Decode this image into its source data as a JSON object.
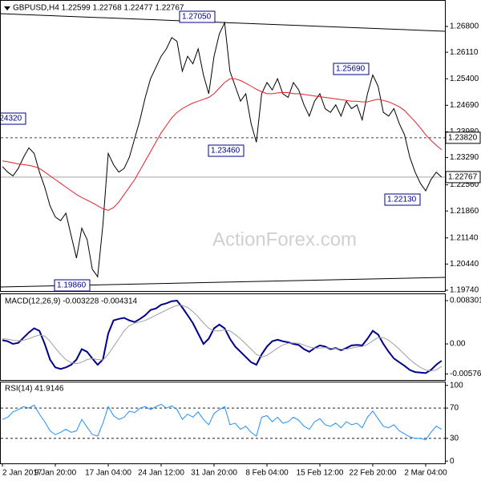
{
  "chart_data": [
    {
      "type": "line",
      "title": "GBPUSD,H4  1.22599 1.22768 1.22477 1.22767",
      "series": [
        {
          "color": "#000000",
          "values": [
            1.2305,
            1.229,
            1.228,
            1.23,
            1.233,
            1.2355,
            1.234,
            1.229,
            1.225,
            1.22,
            1.217,
            1.216,
            1.218,
            1.212,
            1.206,
            1.214,
            1.211,
            1.203,
            1.201,
            1.215,
            1.234,
            1.231,
            1.229,
            1.23,
            1.233,
            1.238,
            1.243,
            1.249,
            1.254,
            1.257,
            1.26,
            1.262,
            1.265,
            1.264,
            1.256,
            1.26,
            1.258,
            1.262,
            1.255,
            1.25,
            1.26,
            1.266,
            1.269,
            1.256,
            1.252,
            1.248,
            1.25,
            1.242,
            1.237,
            1.25,
            1.253,
            1.251,
            1.254,
            1.25,
            1.249,
            1.253,
            1.251,
            1.247,
            1.244,
            1.248,
            1.25,
            1.246,
            1.245,
            1.247,
            1.244,
            1.248,
            1.246,
            1.247,
            1.243,
            1.25,
            1.255,
            1.252,
            1.245,
            1.244,
            1.246,
            1.242,
            1.239,
            1.233,
            1.229,
            1.226,
            1.224,
            1.227,
            1.229,
            1.22767
          ]
        },
        {
          "color": "#e8202a",
          "values": [
            1.232,
            1.2318,
            1.2315,
            1.2312,
            1.231,
            1.2308,
            1.2305,
            1.23,
            1.229,
            1.228,
            1.227,
            1.226,
            1.225,
            1.224,
            1.223,
            1.2222,
            1.2215,
            1.2208,
            1.22,
            1.2192,
            1.2188,
            1.2195,
            1.221,
            1.223,
            1.225,
            1.227,
            1.2295,
            1.232,
            1.2345,
            1.237,
            1.2395,
            1.2415,
            1.2435,
            1.245,
            1.246,
            1.2468,
            1.2475,
            1.248,
            1.2485,
            1.249,
            1.25,
            1.2515,
            1.253,
            1.254,
            1.254,
            1.2535,
            1.2528,
            1.252,
            1.2512,
            1.2505,
            1.25,
            1.25,
            1.2502,
            1.2503,
            1.2503,
            1.25,
            1.25,
            1.2498,
            1.2496,
            1.2494,
            1.2492,
            1.249,
            1.2488,
            1.2486,
            1.2484,
            1.2482,
            1.248,
            1.248,
            1.2478,
            1.2478,
            1.2482,
            1.2485,
            1.2482,
            1.2478,
            1.2472,
            1.2465,
            1.2455,
            1.244,
            1.2425,
            1.2408,
            1.239,
            1.2375,
            1.2362,
            1.235
          ]
        }
      ],
      "ylim": [
        1.1974,
        1.274
      ],
      "yticks": [
        {
          "value": 1.268,
          "label": "1.26800"
        },
        {
          "value": 1.2611,
          "label": "1.26110"
        },
        {
          "value": 1.254,
          "label": "1.25400"
        },
        {
          "value": 1.2469,
          "label": "1.24690"
        },
        {
          "value": 1.2398,
          "label": "1.23980"
        },
        {
          "value": 1.2329,
          "label": "1.23290"
        },
        {
          "value": 1.2256,
          "label": "1.22560"
        },
        {
          "value": 1.2186,
          "label": "1.21860"
        },
        {
          "value": 1.2114,
          "label": "1.21140"
        },
        {
          "value": 1.2044,
          "label": "1.20440"
        },
        {
          "value": 1.1974,
          "label": "1.19740"
        }
      ],
      "levels": [
        {
          "value": 1.2382,
          "label": "1.23820"
        },
        {
          "value": 1.22767,
          "label": "1.22767"
        }
      ],
      "annotations": [
        "1.27050",
        "1.23460",
        "1.25690",
        "1.22130",
        "1.19860",
        "1.24320"
      ],
      "watermark": "ActionForex.com"
    },
    {
      "type": "line",
      "title": "MACD(12,26,9) -0.003228 -0.004314",
      "series": [
        {
          "color": "#00008b",
          "values": [
            0.0007,
            0.0005,
            0.0,
            0.0002,
            0.0012,
            0.0022,
            0.003,
            0.0025,
            0.0,
            -0.003,
            -0.0045,
            -0.0048,
            -0.0045,
            -0.004,
            -0.003,
            -0.001,
            -0.0015,
            -0.0028,
            -0.004,
            -0.003,
            0.002,
            0.0045,
            0.0048,
            0.005,
            0.0045,
            0.0042,
            0.0048,
            0.0055,
            0.0065,
            0.0068,
            0.0075,
            0.0078,
            0.0082,
            0.0083,
            0.007,
            0.0055,
            0.004,
            0.002,
            0.0,
            0.001,
            0.003,
            0.0037,
            0.003,
            0.001,
            -0.0005,
            -0.0015,
            -0.0025,
            -0.0035,
            -0.004,
            -0.002,
            -0.0005,
            0.0005,
            0.0008,
            0.0005,
            0.0003,
            0.0,
            -0.0002,
            -0.001,
            -0.0015,
            -0.0008,
            -0.0003,
            -0.0005,
            -0.001,
            -0.0008,
            -0.0012,
            -0.0008,
            -0.0003,
            -0.0002,
            -0.0003,
            0.001,
            0.0025,
            0.0018,
            0.0,
            -0.0015,
            -0.0028,
            -0.0035,
            -0.0042,
            -0.005,
            -0.0054,
            -0.0055,
            -0.0056,
            -0.005,
            -0.004,
            -0.003228
          ]
        },
        {
          "color": "#a0a0a0",
          "values": [
            0.001,
            0.0009,
            0.0007,
            0.0006,
            0.0007,
            0.001,
            0.0014,
            0.0017,
            0.0015,
            0.0005,
            -0.0008,
            -0.002,
            -0.003,
            -0.0036,
            -0.0038,
            -0.0035,
            -0.003,
            -0.0028,
            -0.003,
            -0.0031,
            -0.002,
            -0.0005,
            0.001,
            0.0025,
            0.0035,
            0.004,
            0.0042,
            0.0045,
            0.005,
            0.0055,
            0.006,
            0.0065,
            0.007,
            0.0074,
            0.0074,
            0.007,
            0.0062,
            0.0052,
            0.004,
            0.003,
            0.0025,
            0.0025,
            0.0027,
            0.0025,
            0.0018,
            0.001,
            0.0,
            -0.001,
            -0.002,
            -0.0025,
            -0.0022,
            -0.0015,
            -0.0008,
            -0.0002,
            0.0001,
            0.0002,
            0.0001,
            -0.0002,
            -0.0006,
            -0.0008,
            -0.0008,
            -0.0007,
            -0.0008,
            -0.0009,
            -0.001,
            -0.001,
            -0.0008,
            -0.0006,
            -0.0005,
            -0.0001,
            0.0006,
            0.0012,
            0.0012,
            0.0007,
            -0.0001,
            -0.001,
            -0.002,
            -0.003,
            -0.0038,
            -0.0045,
            -0.005,
            -0.0052,
            -0.005,
            -0.004314
          ]
        }
      ],
      "ylim": [
        -0.00692,
        0.00938
      ],
      "yticks": [
        0.008301,
        {
          "value": 0,
          "label": "0.00"
        },
        -0.005768
      ]
    },
    {
      "type": "line",
      "title": "RSI(14) 41.9146",
      "categories": [
        "2 Jan 2017",
        null,
        null,
        null,
        null,
        null,
        null,
        null,
        null,
        null,
        "9 Jan 20:00",
        null,
        null,
        null,
        null,
        null,
        null,
        null,
        null,
        null,
        "17 Jan 04:00",
        null,
        null,
        null,
        null,
        null,
        null,
        null,
        null,
        null,
        "24 Jan 12:00",
        null,
        null,
        null,
        null,
        null,
        null,
        null,
        null,
        null,
        "31 Jan 20:00",
        null,
        null,
        null,
        null,
        null,
        null,
        null,
        null,
        null,
        "8 Feb 04:00",
        null,
        null,
        null,
        null,
        null,
        null,
        null,
        null,
        null,
        "15 Feb 12:00",
        null,
        null,
        null,
        null,
        null,
        null,
        null,
        null,
        null,
        "22 Feb 20:00",
        null,
        null,
        null,
        null,
        null,
        null,
        null,
        null,
        null,
        "2 Mar 04:00",
        null,
        null,
        null
      ],
      "series": [
        {
          "color": "#1e90ff",
          "values": [
            55,
            58,
            65,
            68,
            72,
            70,
            74,
            62,
            52,
            40,
            35,
            38,
            42,
            38,
            40,
            55,
            45,
            35,
            33,
            50,
            72,
            60,
            55,
            58,
            66,
            64,
            70,
            72,
            68,
            72,
            75,
            70,
            73,
            68,
            55,
            62,
            58,
            65,
            55,
            48,
            63,
            68,
            72,
            48,
            50,
            42,
            46,
            38,
            33,
            58,
            60,
            52,
            58,
            50,
            52,
            58,
            54,
            46,
            42,
            52,
            56,
            48,
            46,
            50,
            44,
            52,
            48,
            50,
            44,
            58,
            66,
            56,
            46,
            44,
            48,
            40,
            36,
            32,
            30,
            30,
            28,
            38,
            46,
            41.9146
          ]
        }
      ],
      "ylim": [
        -3,
        105
      ],
      "yticks": [
        100,
        70,
        30,
        0
      ],
      "levels": [
        70,
        30
      ]
    }
  ]
}
